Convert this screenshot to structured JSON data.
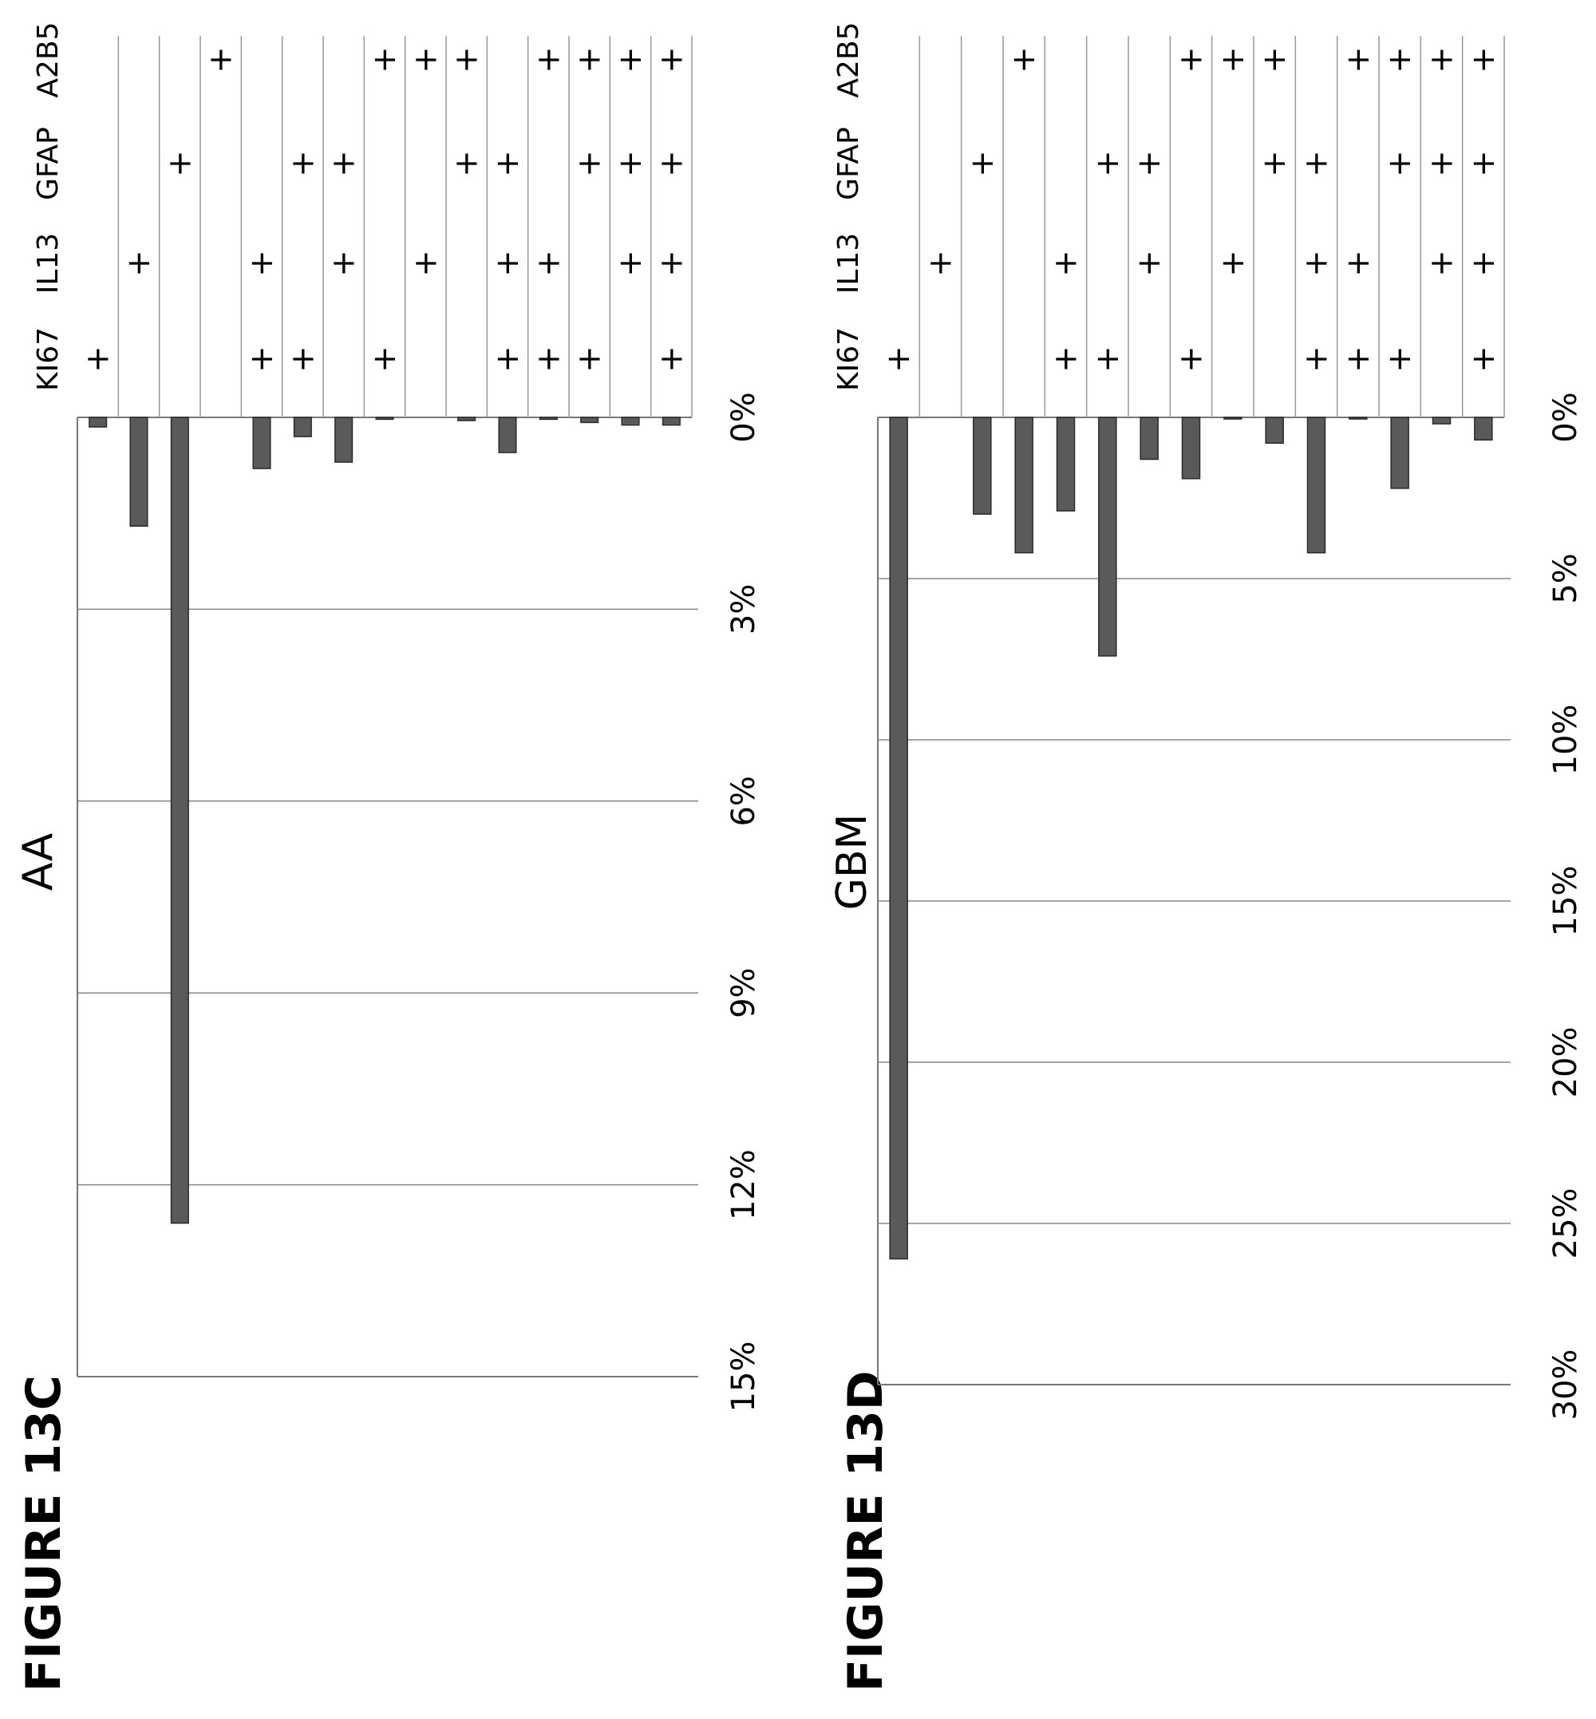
{
  "chart_data": [
    {
      "id": "13C",
      "figure_label": "FIGURE 13C",
      "type": "bar",
      "orientation": "horizontal-bars (rotated page)",
      "title": "AA",
      "markers": [
        "KI67",
        "IL13",
        "GFAP",
        "A2B5"
      ],
      "axis_ticks": [
        "0%",
        "3%",
        "6%",
        "9%",
        "12%",
        "15%"
      ],
      "axis_range": [
        0,
        15
      ],
      "grid": true,
      "rows": [
        {
          "KI67": "+",
          "IL13": "",
          "GFAP": "",
          "A2B5": "",
          "value": 0.15
        },
        {
          "KI67": "",
          "IL13": "+",
          "GFAP": "",
          "A2B5": "",
          "value": 1.7
        },
        {
          "KI67": "",
          "IL13": "",
          "GFAP": "+",
          "A2B5": "",
          "value": 12.6
        },
        {
          "KI67": "",
          "IL13": "",
          "GFAP": "",
          "A2B5": "+",
          "value": 0
        },
        {
          "KI67": "+",
          "IL13": "+",
          "GFAP": "",
          "A2B5": "",
          "value": 0.8
        },
        {
          "KI67": "+",
          "IL13": "",
          "GFAP": "+",
          "A2B5": "",
          "value": 0.3
        },
        {
          "KI67": "",
          "IL13": "+",
          "GFAP": "+",
          "A2B5": "",
          "value": 0.7
        },
        {
          "KI67": "+",
          "IL13": "",
          "GFAP": "",
          "A2B5": "+",
          "value": 0.03
        },
        {
          "KI67": "",
          "IL13": "+",
          "GFAP": "",
          "A2B5": "+",
          "value": 0
        },
        {
          "KI67": "",
          "IL13": "",
          "GFAP": "+",
          "A2B5": "+",
          "value": 0.05
        },
        {
          "KI67": "+",
          "IL13": "+",
          "GFAP": "+",
          "A2B5": "",
          "value": 0.55
        },
        {
          "KI67": "+",
          "IL13": "+",
          "GFAP": "",
          "A2B5": "+",
          "value": 0.03
        },
        {
          "KI67": "+",
          "IL13": "",
          "GFAP": "+",
          "A2B5": "+",
          "value": 0.08
        },
        {
          "KI67": "",
          "IL13": "+",
          "GFAP": "+",
          "A2B5": "+",
          "value": 0.12
        },
        {
          "KI67": "+",
          "IL13": "+",
          "GFAP": "+",
          "A2B5": "+",
          "value": 0.12
        }
      ]
    },
    {
      "id": "13D",
      "figure_label": "FIGURE 13D",
      "type": "bar",
      "orientation": "horizontal-bars (rotated page)",
      "title": "GBM",
      "markers": [
        "KI67",
        "IL13",
        "GFAP",
        "A2B5"
      ],
      "axis_ticks": [
        "0%",
        "5%",
        "10%",
        "15%",
        "20%",
        "25%",
        "30%"
      ],
      "axis_range": [
        0,
        30
      ],
      "grid": true,
      "rows": [
        {
          "KI67": "+",
          "IL13": "",
          "GFAP": "",
          "A2B5": "",
          "value": 26.1
        },
        {
          "KI67": "",
          "IL13": "+",
          "GFAP": "",
          "A2B5": "",
          "value": 0
        },
        {
          "KI67": "",
          "IL13": "",
          "GFAP": "+",
          "A2B5": "",
          "value": 3.0
        },
        {
          "KI67": "",
          "IL13": "",
          "GFAP": "",
          "A2B5": "+",
          "value": 4.2
        },
        {
          "KI67": "+",
          "IL13": "+",
          "GFAP": "",
          "A2B5": "",
          "value": 2.9
        },
        {
          "KI67": "+",
          "IL13": "",
          "GFAP": "+",
          "A2B5": "",
          "value": 7.4
        },
        {
          "KI67": "",
          "IL13": "+",
          "GFAP": "+",
          "A2B5": "",
          "value": 1.3
        },
        {
          "KI67": "+",
          "IL13": "",
          "GFAP": "",
          "A2B5": "+",
          "value": 1.9
        },
        {
          "KI67": "",
          "IL13": "+",
          "GFAP": "",
          "A2B5": "+",
          "value": 0.05
        },
        {
          "KI67": "",
          "IL13": "",
          "GFAP": "+",
          "A2B5": "+",
          "value": 0.8
        },
        {
          "KI67": "+",
          "IL13": "+",
          "GFAP": "+",
          "A2B5": "",
          "value": 4.2
        },
        {
          "KI67": "+",
          "IL13": "+",
          "GFAP": "",
          "A2B5": "+",
          "value": 0.05
        },
        {
          "KI67": "+",
          "IL13": "",
          "GFAP": "+",
          "A2B5": "+",
          "value": 2.2
        },
        {
          "KI67": "",
          "IL13": "+",
          "GFAP": "+",
          "A2B5": "+",
          "value": 0.2
        },
        {
          "KI67": "+",
          "IL13": "+",
          "GFAP": "+",
          "A2B5": "+",
          "value": 0.7
        }
      ]
    }
  ]
}
